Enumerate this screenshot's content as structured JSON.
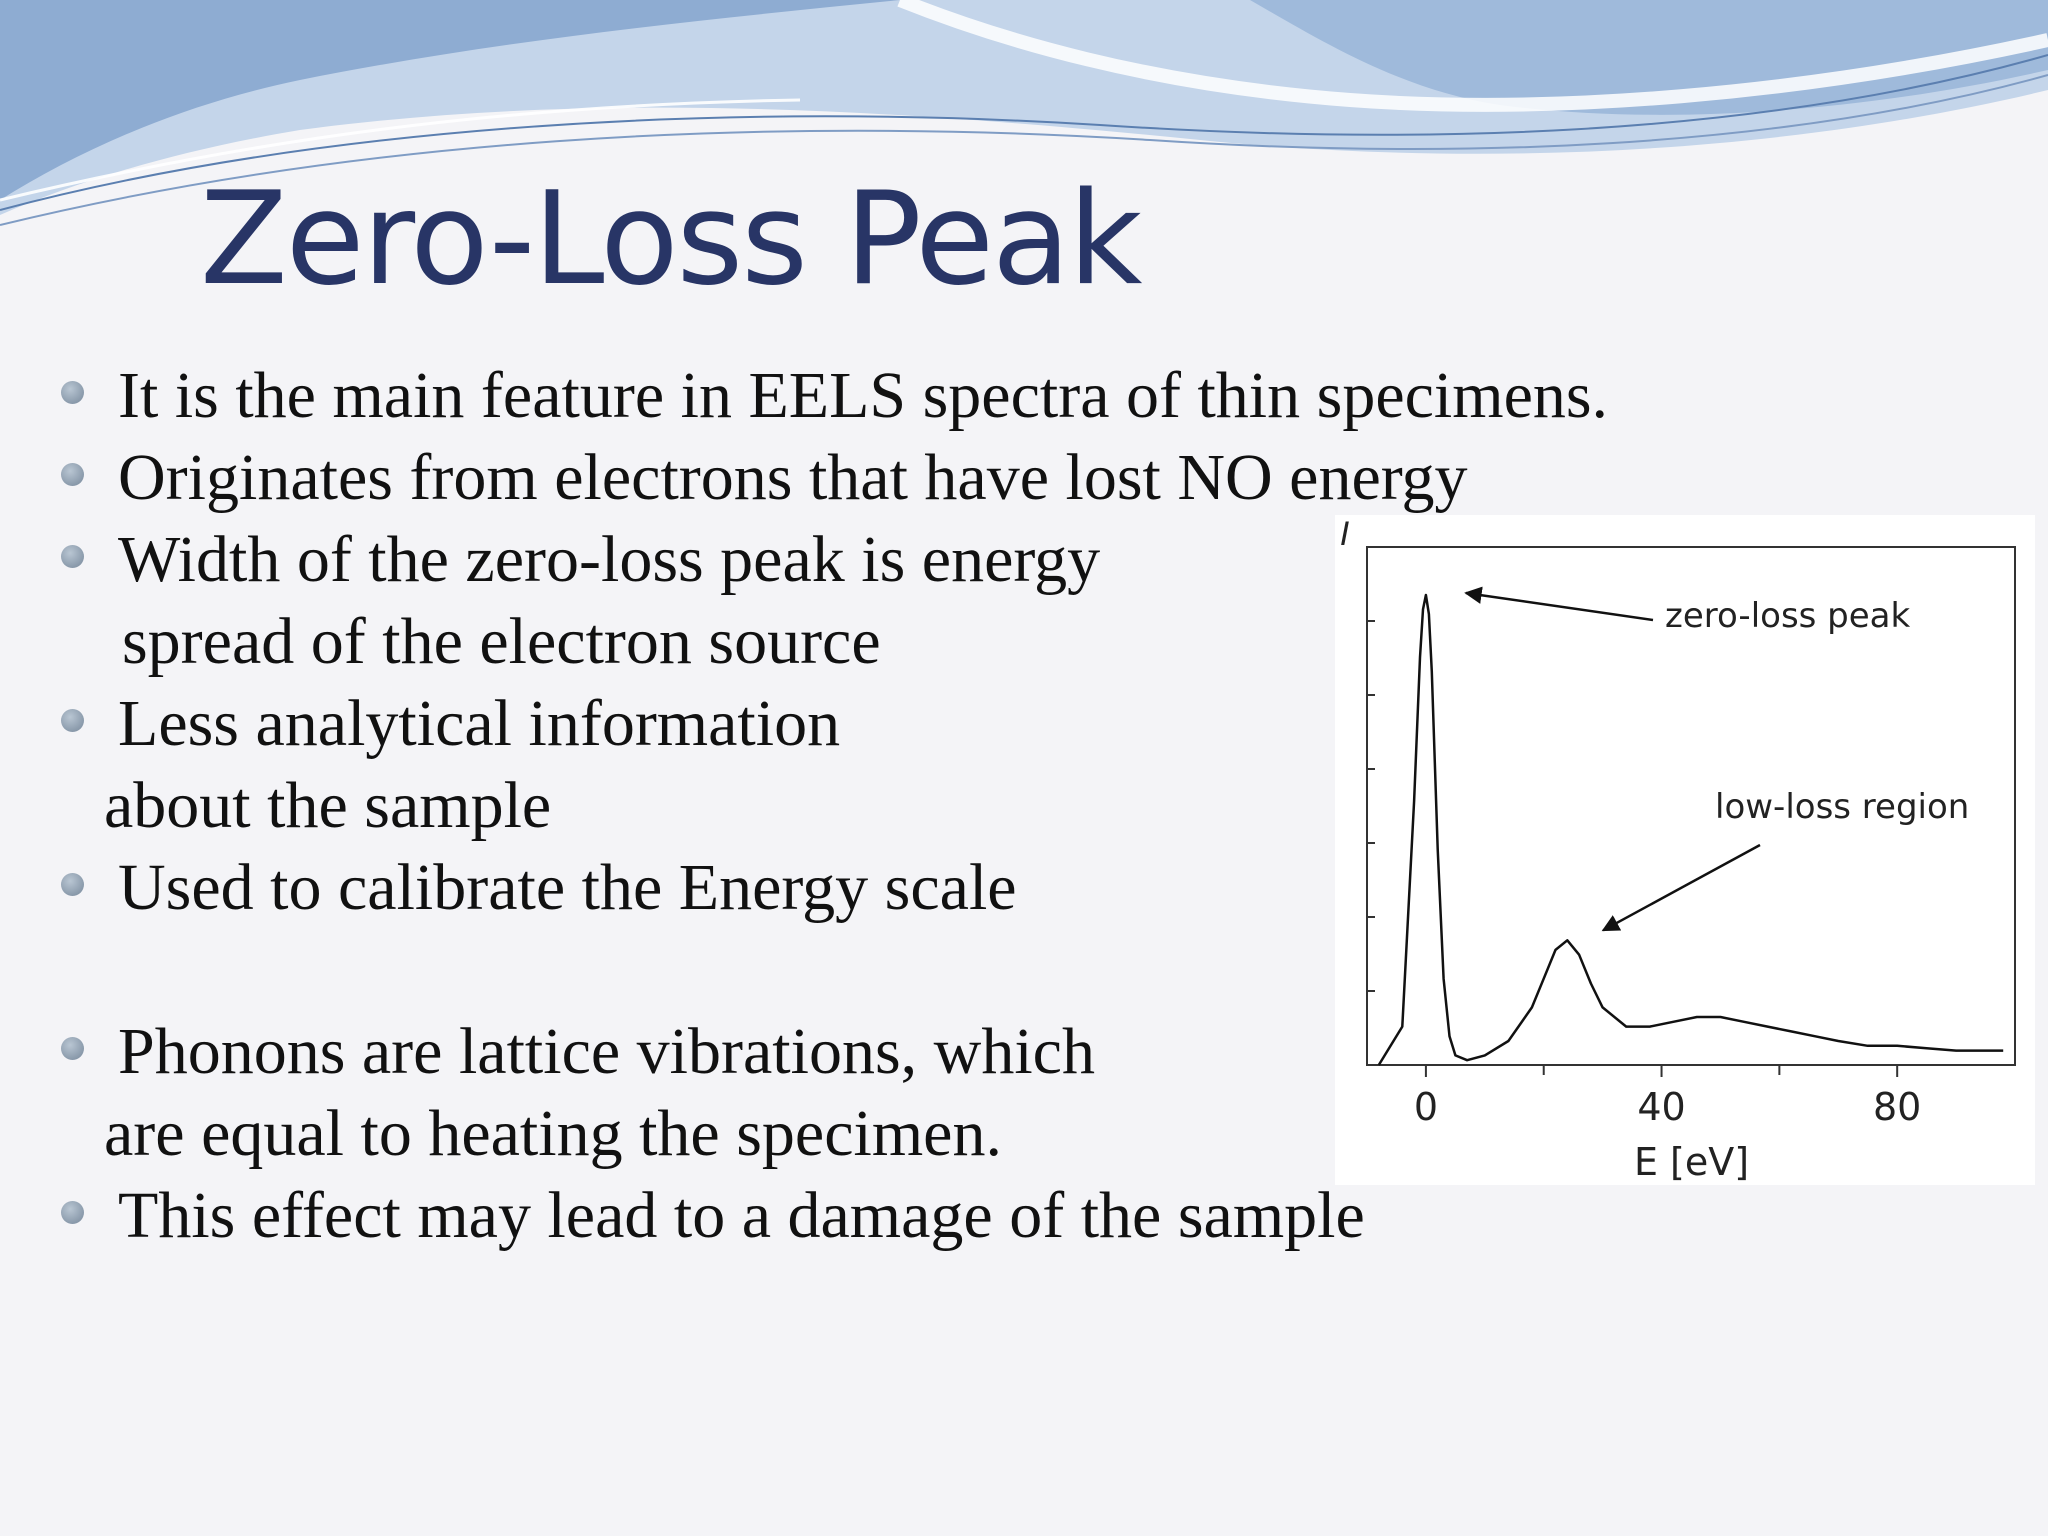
{
  "slide": {
    "title": "Zero-Loss Peak",
    "bullets": [
      {
        "lines": [
          "It is the main feature in EELS spectra of thin specimens."
        ]
      },
      {
        "lines": [
          "Originates from electrons that have lost NO energy"
        ]
      },
      {
        "lines": [
          "Width of the zero-loss peak is energy",
          "spread of the electron source"
        ]
      },
      {
        "lines": [
          "Less analytical information",
          "about the sample"
        ]
      },
      {
        "lines": [
          "Used to calibrate the Energy scale"
        ]
      },
      {
        "lines": [
          "Phonons are lattice vibrations, which",
          "are equal to heating the specimen."
        ]
      },
      {
        "lines": [
          "This effect may lead to a damage of the sample"
        ]
      }
    ],
    "colors": {
      "title": "#283566",
      "bullet": "#8a9aab",
      "wave_dark": "#8eacd2",
      "wave_light": "#c4d5ea"
    }
  },
  "chart_data": {
    "type": "line",
    "title": "",
    "xlabel": "E [eV]",
    "ylabel": "I",
    "xlim": [
      -10,
      100
    ],
    "ylim": [
      0,
      1.08
    ],
    "xticks": [
      0,
      40,
      80
    ],
    "annotations": [
      {
        "text": "zero-loss peak",
        "x": 0,
        "y": 0.98
      },
      {
        "text": "low-loss region",
        "x": 25,
        "y": 0.26
      }
    ],
    "series": [
      {
        "x": [
          -8,
          -4,
          -2,
          -1,
          -0.5,
          0,
          0.5,
          1,
          2,
          3,
          4,
          5,
          7,
          10,
          14,
          18,
          20,
          22,
          24,
          26,
          28,
          30,
          34,
          38,
          42,
          46,
          50,
          54,
          58,
          62,
          66,
          70,
          75,
          80,
          85,
          90,
          95,
          98
        ],
        "y": [
          0.0,
          0.08,
          0.55,
          0.85,
          0.95,
          0.98,
          0.94,
          0.82,
          0.45,
          0.18,
          0.06,
          0.02,
          0.01,
          0.02,
          0.05,
          0.12,
          0.18,
          0.24,
          0.26,
          0.23,
          0.17,
          0.12,
          0.08,
          0.08,
          0.09,
          0.1,
          0.1,
          0.09,
          0.08,
          0.07,
          0.06,
          0.05,
          0.04,
          0.04,
          0.035,
          0.03,
          0.03,
          0.03
        ]
      }
    ]
  }
}
